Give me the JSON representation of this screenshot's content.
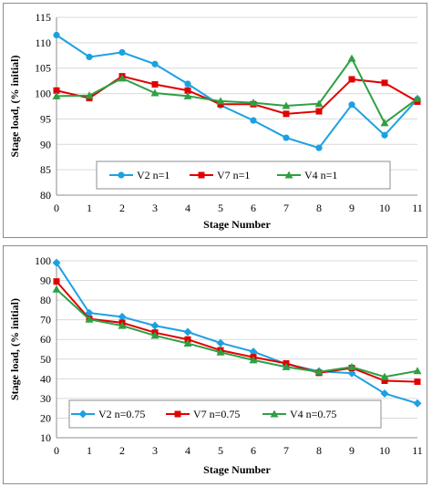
{
  "chart_data": [
    {
      "type": "line",
      "xlabel": "Stage Number",
      "ylabel": "Stage load, (% initial)",
      "x": [
        0,
        1,
        2,
        3,
        4,
        5,
        6,
        7,
        8,
        9,
        10,
        11
      ],
      "ylim": [
        80,
        115
      ],
      "yticks": [
        80,
        85,
        90,
        95,
        100,
        105,
        110,
        115
      ],
      "grid": true,
      "legend_position": "bottom-inside",
      "series": [
        {
          "name": "V2 n=1",
          "color": "#1ba1e2",
          "marker": "circle",
          "values": [
            111.5,
            107.2,
            108.1,
            105.8,
            101.9,
            97.7,
            94.7,
            91.3,
            89.3,
            97.8,
            91.8,
            98.9
          ]
        },
        {
          "name": "V7 n=1",
          "color": "#e00000",
          "marker": "square",
          "values": [
            100.6,
            99.1,
            103.4,
            101.8,
            100.6,
            97.9,
            97.9,
            96.0,
            96.5,
            102.8,
            102.1,
            98.4
          ]
        },
        {
          "name": "V4 n=1",
          "color": "#2ea043",
          "marker": "triangle",
          "values": [
            99.5,
            99.6,
            103.0,
            100.1,
            99.5,
            98.5,
            98.2,
            97.6,
            98.0,
            106.9,
            94.2,
            99.0
          ]
        }
      ]
    },
    {
      "type": "line",
      "xlabel": "Stage Number",
      "ylabel": "Stage load, (% initial)",
      "x": [
        0,
        1,
        2,
        3,
        4,
        5,
        6,
        7,
        8,
        9,
        10,
        11
      ],
      "ylim": [
        10,
        100
      ],
      "yticks": [
        10,
        20,
        30,
        40,
        50,
        60,
        70,
        80,
        90,
        100
      ],
      "grid": true,
      "legend_position": "bottom-inside",
      "series": [
        {
          "name": "V2 n=0.75",
          "color": "#1ba1e2",
          "marker": "diamond",
          "values": [
            99.0,
            73.5,
            71.5,
            67.0,
            63.8,
            58.2,
            53.8,
            47.5,
            43.8,
            42.8,
            32.5,
            27.5
          ]
        },
        {
          "name": "V7 n=0.75",
          "color": "#e00000",
          "marker": "square",
          "values": [
            89.5,
            70.5,
            68.5,
            63.5,
            60.0,
            54.5,
            51.0,
            47.8,
            43.0,
            45.5,
            39.0,
            38.5
          ]
        },
        {
          "name": "V4 n=0.75",
          "color": "#2ea043",
          "marker": "triangle",
          "values": [
            85.5,
            70.2,
            67.0,
            62.0,
            58.0,
            53.5,
            49.5,
            46.0,
            43.5,
            46.0,
            41.0,
            44.0
          ]
        }
      ]
    }
  ]
}
